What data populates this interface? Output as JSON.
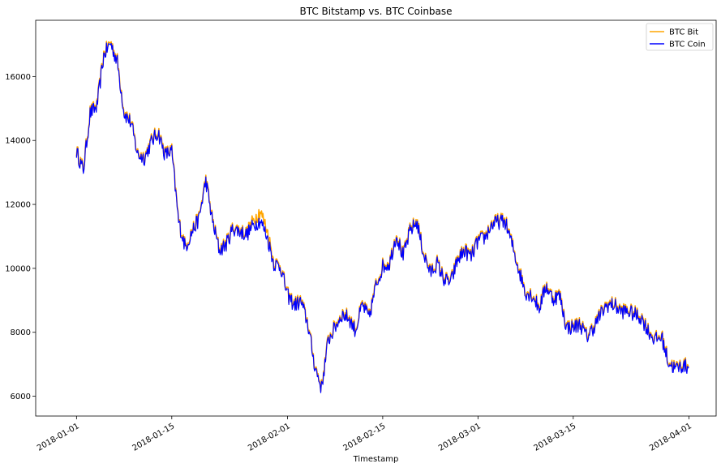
{
  "chart_data": {
    "type": "line",
    "title": "BTC Bitstamp vs. BTC Coinbase",
    "xlabel": "Timestamp",
    "ylabel": "",
    "x_range": [
      "2017-12-26",
      "2018-04-05"
    ],
    "ylim": [
      5380,
      17760
    ],
    "x_ticks": [
      "2018-01-01",
      "2018-01-15",
      "2018-02-01",
      "2018-02-15",
      "2018-03-01",
      "2018-03-15",
      "2018-04-01"
    ],
    "y_ticks": [
      6000,
      8000,
      10000,
      12000,
      14000,
      16000
    ],
    "grid": false,
    "legend_position": "top-right",
    "series": [
      {
        "name": "BTC Bit",
        "color": "#ffa500",
        "points": [
          [
            "2018-01-01",
            13700
          ],
          [
            "2018-01-02",
            13100
          ],
          [
            "2018-01-03",
            14900
          ],
          [
            "2018-01-04",
            15100
          ],
          [
            "2018-01-05",
            16700
          ],
          [
            "2018-01-06",
            17100
          ],
          [
            "2018-01-07",
            16500
          ],
          [
            "2018-01-08",
            14900
          ],
          [
            "2018-01-09",
            14600
          ],
          [
            "2018-01-10",
            13600
          ],
          [
            "2018-01-11",
            13500
          ],
          [
            "2018-01-12",
            14000
          ],
          [
            "2018-01-13",
            14300
          ],
          [
            "2018-01-14",
            13600
          ],
          [
            "2018-01-15",
            13700
          ],
          [
            "2018-01-16",
            11500
          ],
          [
            "2018-01-17",
            10700
          ],
          [
            "2018-01-18",
            11200
          ],
          [
            "2018-01-19",
            11600
          ],
          [
            "2018-01-20",
            12800
          ],
          [
            "2018-01-21",
            11500
          ],
          [
            "2018-01-22",
            10600
          ],
          [
            "2018-01-23",
            10800
          ],
          [
            "2018-01-24",
            11300
          ],
          [
            "2018-01-25",
            11200
          ],
          [
            "2018-01-26",
            11100
          ],
          [
            "2018-01-27",
            11500
          ],
          [
            "2018-01-28",
            11800
          ],
          [
            "2018-01-29",
            11200
          ],
          [
            "2018-01-30",
            10200
          ],
          [
            "2018-01-31",
            10100
          ],
          [
            "2018-02-01",
            9200
          ],
          [
            "2018-02-02",
            8900
          ],
          [
            "2018-02-03",
            9000
          ],
          [
            "2018-02-04",
            8300
          ],
          [
            "2018-02-05",
            7000
          ],
          [
            "2018-02-06",
            6300
          ],
          [
            "2018-02-07",
            7800
          ],
          [
            "2018-02-08",
            8200
          ],
          [
            "2018-02-09",
            8600
          ],
          [
            "2018-02-10",
            8500
          ],
          [
            "2018-02-11",
            8100
          ],
          [
            "2018-02-12",
            8900
          ],
          [
            "2018-02-13",
            8500
          ],
          [
            "2018-02-14",
            9500
          ],
          [
            "2018-02-15",
            10100
          ],
          [
            "2018-02-16",
            10200
          ],
          [
            "2018-02-17",
            11100
          ],
          [
            "2018-02-18",
            10400
          ],
          [
            "2018-02-19",
            11200
          ],
          [
            "2018-02-20",
            11500
          ],
          [
            "2018-02-21",
            10500
          ],
          [
            "2018-02-22",
            9900
          ],
          [
            "2018-02-23",
            10200
          ],
          [
            "2018-02-24",
            9700
          ],
          [
            "2018-02-25",
            9600
          ],
          [
            "2018-02-26",
            10300
          ],
          [
            "2018-02-27",
            10600
          ],
          [
            "2018-02-28",
            10400
          ],
          [
            "2018-03-01",
            10900
          ],
          [
            "2018-03-02",
            11000
          ],
          [
            "2018-03-03",
            11400
          ],
          [
            "2018-03-04",
            11500
          ],
          [
            "2018-03-05",
            11500
          ],
          [
            "2018-03-06",
            10800
          ],
          [
            "2018-03-07",
            10000
          ],
          [
            "2018-03-08",
            9300
          ],
          [
            "2018-03-09",
            9200
          ],
          [
            "2018-03-10",
            8800
          ],
          [
            "2018-03-11",
            9500
          ],
          [
            "2018-03-12",
            9100
          ],
          [
            "2018-03-13",
            9200
          ],
          [
            "2018-03-14",
            8200
          ],
          [
            "2018-03-15",
            8200
          ],
          [
            "2018-03-16",
            8300
          ],
          [
            "2018-03-17",
            7900
          ],
          [
            "2018-03-18",
            8200
          ],
          [
            "2018-03-19",
            8600
          ],
          [
            "2018-03-20",
            8900
          ],
          [
            "2018-03-21",
            8900
          ],
          [
            "2018-03-22",
            8700
          ],
          [
            "2018-03-23",
            8700
          ],
          [
            "2018-03-24",
            8600
          ],
          [
            "2018-03-25",
            8500
          ],
          [
            "2018-03-26",
            8100
          ],
          [
            "2018-03-27",
            7800
          ],
          [
            "2018-03-28",
            7900
          ],
          [
            "2018-03-29",
            7100
          ],
          [
            "2018-03-30",
            6900
          ],
          [
            "2018-03-31",
            7000
          ],
          [
            "2018-04-01",
            6950
          ]
        ]
      },
      {
        "name": "BTC Coin",
        "color": "#0000ff",
        "points": [
          [
            "2018-01-01",
            13650
          ],
          [
            "2018-01-02",
            13050
          ],
          [
            "2018-01-03",
            14850
          ],
          [
            "2018-01-04",
            15050
          ],
          [
            "2018-01-05",
            16650
          ],
          [
            "2018-01-06",
            17050
          ],
          [
            "2018-01-07",
            16450
          ],
          [
            "2018-01-08",
            14850
          ],
          [
            "2018-01-09",
            14550
          ],
          [
            "2018-01-10",
            13550
          ],
          [
            "2018-01-11",
            13450
          ],
          [
            "2018-01-12",
            13950
          ],
          [
            "2018-01-13",
            14250
          ],
          [
            "2018-01-14",
            13550
          ],
          [
            "2018-01-15",
            13650
          ],
          [
            "2018-01-16",
            11450
          ],
          [
            "2018-01-17",
            10650
          ],
          [
            "2018-01-18",
            11150
          ],
          [
            "2018-01-19",
            11550
          ],
          [
            "2018-01-20",
            12750
          ],
          [
            "2018-01-21",
            11450
          ],
          [
            "2018-01-22",
            10550
          ],
          [
            "2018-01-23",
            10750
          ],
          [
            "2018-01-24",
            11250
          ],
          [
            "2018-01-25",
            11150
          ],
          [
            "2018-01-26",
            11050
          ],
          [
            "2018-01-27",
            11350
          ],
          [
            "2018-01-28",
            11500
          ],
          [
            "2018-01-29",
            11000
          ],
          [
            "2018-01-30",
            10150
          ],
          [
            "2018-01-31",
            10050
          ],
          [
            "2018-02-01",
            9150
          ],
          [
            "2018-02-02",
            8850
          ],
          [
            "2018-02-03",
            8950
          ],
          [
            "2018-02-04",
            8250
          ],
          [
            "2018-02-05",
            6950
          ],
          [
            "2018-02-06",
            6250
          ],
          [
            "2018-02-07",
            7750
          ],
          [
            "2018-02-08",
            8150
          ],
          [
            "2018-02-09",
            8550
          ],
          [
            "2018-02-10",
            8450
          ],
          [
            "2018-02-11",
            8050
          ],
          [
            "2018-02-12",
            8850
          ],
          [
            "2018-02-13",
            8450
          ],
          [
            "2018-02-14",
            9450
          ],
          [
            "2018-02-15",
            10050
          ],
          [
            "2018-02-16",
            10150
          ],
          [
            "2018-02-17",
            11050
          ],
          [
            "2018-02-18",
            10350
          ],
          [
            "2018-02-19",
            11150
          ],
          [
            "2018-02-20",
            11450
          ],
          [
            "2018-02-21",
            10450
          ],
          [
            "2018-02-22",
            9850
          ],
          [
            "2018-02-23",
            10150
          ],
          [
            "2018-02-24",
            9650
          ],
          [
            "2018-02-25",
            9550
          ],
          [
            "2018-02-26",
            10250
          ],
          [
            "2018-02-27",
            10550
          ],
          [
            "2018-02-28",
            10350
          ],
          [
            "2018-03-01",
            10850
          ],
          [
            "2018-03-02",
            10950
          ],
          [
            "2018-03-03",
            11350
          ],
          [
            "2018-03-04",
            11450
          ],
          [
            "2018-03-05",
            11450
          ],
          [
            "2018-03-06",
            10750
          ],
          [
            "2018-03-07",
            9950
          ],
          [
            "2018-03-08",
            9250
          ],
          [
            "2018-03-09",
            9150
          ],
          [
            "2018-03-10",
            8750
          ],
          [
            "2018-03-11",
            9450
          ],
          [
            "2018-03-12",
            9050
          ],
          [
            "2018-03-13",
            9150
          ],
          [
            "2018-03-14",
            8150
          ],
          [
            "2018-03-15",
            8150
          ],
          [
            "2018-03-16",
            8250
          ],
          [
            "2018-03-17",
            7850
          ],
          [
            "2018-03-18",
            8150
          ],
          [
            "2018-03-19",
            8550
          ],
          [
            "2018-03-20",
            8850
          ],
          [
            "2018-03-21",
            8850
          ],
          [
            "2018-03-22",
            8650
          ],
          [
            "2018-03-23",
            8650
          ],
          [
            "2018-03-24",
            8550
          ],
          [
            "2018-03-25",
            8450
          ],
          [
            "2018-03-26",
            8050
          ],
          [
            "2018-03-27",
            7750
          ],
          [
            "2018-03-28",
            7850
          ],
          [
            "2018-03-29",
            7050
          ],
          [
            "2018-03-30",
            6850
          ],
          [
            "2018-03-31",
            6950
          ],
          [
            "2018-04-01",
            6900
          ]
        ]
      }
    ]
  }
}
